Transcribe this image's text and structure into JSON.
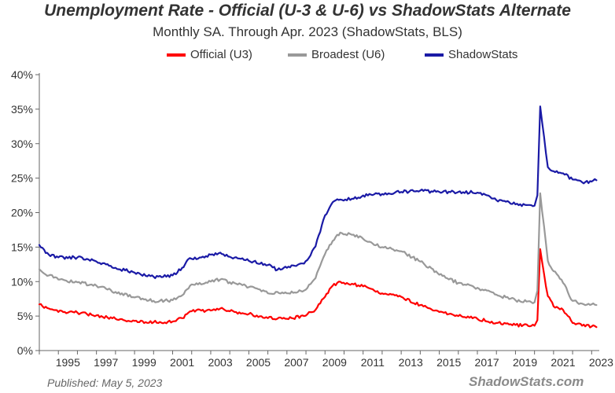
{
  "chart_data": {
    "type": "line",
    "title": "Unemployment Rate - Official (U-3 & U-6) vs ShadowStats Alternate",
    "subtitle": "Monthly SA. Through Apr. 2023  (ShadowStats, BLS)",
    "ylabel": "",
    "xlabel": "",
    "ylim": [
      0,
      40
    ],
    "xlim": [
      1994.0,
      2023.4
    ],
    "y_ticks": [
      "0%",
      "5%",
      "10%",
      "15%",
      "20%",
      "25%",
      "30%",
      "35%",
      "40%"
    ],
    "x_ticks": [
      "1995",
      "1997",
      "1999",
      "2001",
      "2003",
      "2005",
      "2007",
      "2009",
      "2011",
      "2013",
      "2015",
      "2017",
      "2019",
      "2021",
      "2023"
    ],
    "grid": false,
    "legend_position": "top-center",
    "series": [
      {
        "name": "Official (U3)",
        "color": "#ff0000",
        "points": [
          [
            1994.0,
            6.7
          ],
          [
            1994.5,
            6.1
          ],
          [
            1995.0,
            5.6
          ],
          [
            1996.0,
            5.5
          ],
          [
            1997.0,
            5.1
          ],
          [
            1998.0,
            4.6
          ],
          [
            1999.0,
            4.3
          ],
          [
            2000.0,
            4.1
          ],
          [
            2001.0,
            4.2
          ],
          [
            2001.5,
            4.7
          ],
          [
            2002.0,
            5.7
          ],
          [
            2002.5,
            5.8
          ],
          [
            2003.0,
            5.8
          ],
          [
            2003.5,
            6.1
          ],
          [
            2004.0,
            5.7
          ],
          [
            2005.0,
            5.3
          ],
          [
            2006.0,
            4.7
          ],
          [
            2007.0,
            4.6
          ],
          [
            2007.9,
            5.0
          ],
          [
            2008.5,
            5.9
          ],
          [
            2009.0,
            7.8
          ],
          [
            2009.4,
            9.4
          ],
          [
            2009.8,
            10.0
          ],
          [
            2010.5,
            9.6
          ],
          [
            2011.0,
            9.3
          ],
          [
            2012.0,
            8.3
          ],
          [
            2013.0,
            7.8
          ],
          [
            2014.0,
            6.6
          ],
          [
            2015.0,
            5.6
          ],
          [
            2016.0,
            5.0
          ],
          [
            2017.0,
            4.6
          ],
          [
            2018.0,
            4.0
          ],
          [
            2019.0,
            3.7
          ],
          [
            2020.0,
            3.6
          ],
          [
            2020.15,
            4.4
          ],
          [
            2020.3,
            14.7
          ],
          [
            2020.5,
            11.1
          ],
          [
            2020.7,
            7.9
          ],
          [
            2021.0,
            6.4
          ],
          [
            2021.5,
            5.9
          ],
          [
            2022.0,
            4.0
          ],
          [
            2022.5,
            3.6
          ],
          [
            2023.0,
            3.5
          ],
          [
            2023.25,
            3.4
          ]
        ]
      },
      {
        "name": "Broadest (U6)",
        "color": "#999999",
        "points": [
          [
            1994.0,
            11.8
          ],
          [
            1994.5,
            10.9
          ],
          [
            1995.0,
            10.3
          ],
          [
            1996.0,
            9.9
          ],
          [
            1997.0,
            9.4
          ],
          [
            1998.0,
            8.5
          ],
          [
            1999.0,
            7.7
          ],
          [
            2000.0,
            7.2
          ],
          [
            2001.0,
            7.3
          ],
          [
            2001.5,
            8.0
          ],
          [
            2002.0,
            9.6
          ],
          [
            2002.5,
            9.6
          ],
          [
            2003.0,
            10.0
          ],
          [
            2003.5,
            10.3
          ],
          [
            2004.0,
            9.9
          ],
          [
            2005.0,
            9.2
          ],
          [
            2006.0,
            8.3
          ],
          [
            2007.0,
            8.3
          ],
          [
            2007.9,
            8.7
          ],
          [
            2008.5,
            10.5
          ],
          [
            2009.0,
            14.0
          ],
          [
            2009.4,
            15.9
          ],
          [
            2009.8,
            17.1
          ],
          [
            2010.5,
            16.8
          ],
          [
            2011.0,
            16.2
          ],
          [
            2012.0,
            15.0
          ],
          [
            2013.0,
            14.4
          ],
          [
            2014.0,
            12.9
          ],
          [
            2015.0,
            11.0
          ],
          [
            2016.0,
            9.8
          ],
          [
            2017.0,
            9.1
          ],
          [
            2018.0,
            8.1
          ],
          [
            2019.0,
            7.3
          ],
          [
            2020.0,
            7.0
          ],
          [
            2020.15,
            8.7
          ],
          [
            2020.3,
            22.8
          ],
          [
            2020.5,
            18.0
          ],
          [
            2020.7,
            13.0
          ],
          [
            2021.0,
            11.5
          ],
          [
            2021.5,
            9.8
          ],
          [
            2022.0,
            7.2
          ],
          [
            2022.5,
            6.8
          ],
          [
            2023.0,
            6.7
          ],
          [
            2023.25,
            6.6
          ]
        ]
      },
      {
        "name": "ShadowStats",
        "color": "#1a1aa6",
        "points": [
          [
            1994.0,
            15.3
          ],
          [
            1994.5,
            13.9
          ],
          [
            1995.0,
            13.5
          ],
          [
            1996.0,
            13.5
          ],
          [
            1997.0,
            12.9
          ],
          [
            1998.0,
            12.0
          ],
          [
            1999.0,
            11.3
          ],
          [
            2000.0,
            10.7
          ],
          [
            2001.0,
            10.9
          ],
          [
            2001.5,
            12.0
          ],
          [
            2001.8,
            13.2
          ],
          [
            2002.0,
            13.3
          ],
          [
            2002.5,
            13.5
          ],
          [
            2003.0,
            13.9
          ],
          [
            2003.5,
            14.2
          ],
          [
            2004.0,
            13.6
          ],
          [
            2005.0,
            13.0
          ],
          [
            2006.0,
            12.4
          ],
          [
            2006.5,
            11.7
          ],
          [
            2007.0,
            12.0
          ],
          [
            2007.9,
            12.6
          ],
          [
            2008.5,
            15.1
          ],
          [
            2009.0,
            19.6
          ],
          [
            2009.4,
            21.5
          ],
          [
            2009.8,
            21.9
          ],
          [
            2010.5,
            22.0
          ],
          [
            2011.0,
            22.5
          ],
          [
            2012.0,
            22.7
          ],
          [
            2013.0,
            23.0
          ],
          [
            2014.0,
            23.2
          ],
          [
            2015.0,
            23.0
          ],
          [
            2016.0,
            23.0
          ],
          [
            2017.0,
            22.9
          ],
          [
            2018.0,
            21.8
          ],
          [
            2019.0,
            21.2
          ],
          [
            2020.0,
            21.0
          ],
          [
            2020.15,
            22.5
          ],
          [
            2020.3,
            35.4
          ],
          [
            2020.5,
            31.0
          ],
          [
            2020.7,
            26.6
          ],
          [
            2021.0,
            26.0
          ],
          [
            2021.5,
            25.7
          ],
          [
            2022.0,
            24.8
          ],
          [
            2022.5,
            24.4
          ],
          [
            2023.0,
            24.5
          ],
          [
            2023.25,
            24.7
          ]
        ]
      }
    ]
  },
  "footer": {
    "published": "Published: May 5, 2023",
    "brand": "ShadowStats.com"
  },
  "colors": {
    "u3": "#ff0000",
    "u6": "#999999",
    "shadowstats": "#1a1aa6",
    "axis": "#666666"
  }
}
